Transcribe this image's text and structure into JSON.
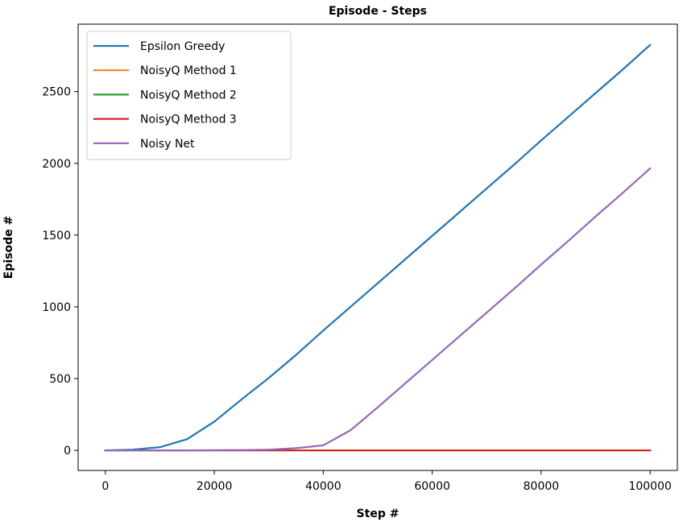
{
  "chart_data": {
    "type": "line",
    "title": "Episode - Steps",
    "xlabel": "Step #",
    "ylabel": "Episode #",
    "xlim": [
      -5000,
      105000
    ],
    "ylim": [
      -140,
      2970
    ],
    "xticks": [
      0,
      20000,
      40000,
      60000,
      80000,
      100000
    ],
    "yticks": [
      0,
      500,
      1000,
      1500,
      2000,
      2500
    ],
    "grid": false,
    "legend_position": "top-left",
    "series": [
      {
        "name": "Epsilon Greedy",
        "color": "#1f77b4",
        "x": [
          0,
          5000,
          10000,
          15000,
          20000,
          25000,
          30000,
          35000,
          40000,
          45000,
          50000,
          55000,
          60000,
          65000,
          70000,
          75000,
          80000,
          85000,
          90000,
          95000,
          100000
        ],
        "y": [
          0,
          5,
          22,
          78,
          200,
          355,
          505,
          665,
          835,
          1000,
          1165,
          1330,
          1495,
          1660,
          1825,
          1990,
          2160,
          2325,
          2490,
          2655,
          2825
        ]
      },
      {
        "name": "NoisyQ Method 1",
        "color": "#ff7f0e",
        "x": [
          0,
          100000
        ],
        "y": [
          0,
          0
        ]
      },
      {
        "name": "NoisyQ Method 2",
        "color": "#2ca02c",
        "x": [
          0,
          100000
        ],
        "y": [
          0,
          0
        ]
      },
      {
        "name": "NoisyQ Method 3",
        "color": "#d62728",
        "x": [
          0,
          100000
        ],
        "y": [
          0,
          0
        ]
      },
      {
        "name": "Noisy Net",
        "color": "#9467bd",
        "x": [
          0,
          5000,
          10000,
          15000,
          20000,
          25000,
          30000,
          35000,
          40000,
          45000,
          50000,
          55000,
          60000,
          65000,
          70000,
          75000,
          80000,
          85000,
          90000,
          95000,
          100000
        ],
        "y": [
          0,
          0,
          0,
          0,
          1,
          2,
          5,
          15,
          35,
          140,
          300,
          465,
          630,
          795,
          960,
          1125,
          1295,
          1460,
          1630,
          1795,
          1965
        ]
      }
    ]
  }
}
